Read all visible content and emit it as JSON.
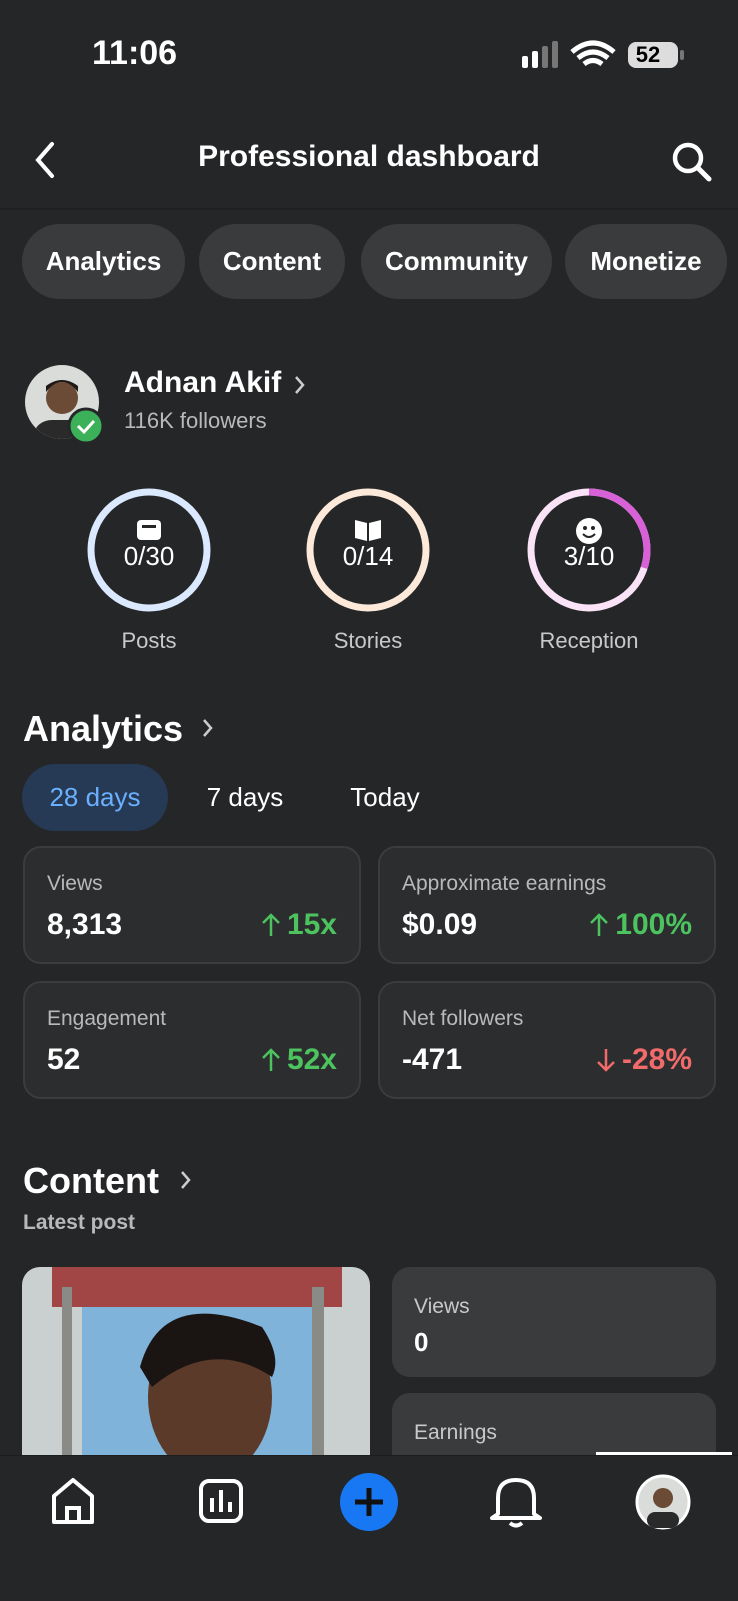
{
  "status_bar": {
    "time": "11:06",
    "battery": "52"
  },
  "header": {
    "title": "Professional dashboard"
  },
  "tabs": [
    "Analytics",
    "Content",
    "Community",
    "Monetize"
  ],
  "profile": {
    "name": "Adnan Akif",
    "followers": "116K followers"
  },
  "goals": [
    {
      "progress": "0/30",
      "label": "Posts",
      "color": "#dbe9ff",
      "accent": "#4a8cff"
    },
    {
      "progress": "0/14",
      "label": "Stories",
      "color": "#fde9d9",
      "accent": "#f59b4c"
    },
    {
      "progress": "3/10",
      "label": "Reception",
      "color": "#fbe3f7",
      "accent": "#d861d8"
    }
  ],
  "analytics": {
    "title": "Analytics",
    "periods": [
      "28 days",
      "7 days",
      "Today"
    ],
    "cards": [
      {
        "label": "Views",
        "value": "8,313",
        "change": "15x",
        "trend": "up"
      },
      {
        "label": "Approximate earnings",
        "value": "$0.09",
        "change": "100%",
        "trend": "up"
      },
      {
        "label": "Engagement",
        "value": "52",
        "change": "52x",
        "trend": "up"
      },
      {
        "label": "Net followers",
        "value": "-471",
        "change": "-28%",
        "trend": "down"
      }
    ]
  },
  "content": {
    "title": "Content",
    "subtitle": "Latest post",
    "stats": [
      {
        "label": "Views",
        "value": "0"
      },
      {
        "label": "Earnings"
      }
    ]
  }
}
